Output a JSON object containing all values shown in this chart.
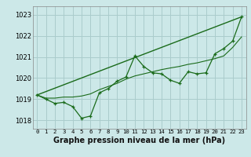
{
  "title": "Graphe pression niveau de la mer (hPa)",
  "bg_color": "#cce8e8",
  "grid_color": "#aacccc",
  "line_color": "#1a6b1a",
  "x_ticks": [
    0,
    1,
    2,
    3,
    4,
    5,
    6,
    7,
    8,
    9,
    10,
    11,
    12,
    13,
    14,
    15,
    16,
    17,
    18,
    19,
    20,
    21,
    22,
    23
  ],
  "y_ticks": [
    1018,
    1019,
    1020,
    1021,
    1022,
    1023
  ],
  "ylim": [
    1017.6,
    1023.4
  ],
  "xlim": [
    -0.5,
    23.5
  ],
  "series1_y": [
    1019.2,
    1019.0,
    1018.8,
    1018.85,
    1018.65,
    1018.1,
    1018.2,
    1019.3,
    1019.5,
    1019.85,
    1020.05,
    1021.05,
    1020.55,
    1020.25,
    1020.2,
    1019.9,
    1019.75,
    1020.3,
    1020.2,
    1020.25,
    1021.15,
    1021.4,
    1021.75,
    1022.9
  ],
  "series2_y": [
    1019.2,
    1019.05,
    1019.05,
    1019.1,
    1019.1,
    1019.15,
    1019.25,
    1019.45,
    1019.6,
    1019.75,
    1019.95,
    1020.1,
    1020.2,
    1020.3,
    1020.4,
    1020.48,
    1020.55,
    1020.65,
    1020.72,
    1020.82,
    1020.92,
    1021.05,
    1021.45,
    1021.95
  ],
  "series3_y": [
    1019.2,
    1022.9
  ],
  "series3_x": [
    0,
    23
  ],
  "tick_fontsize": 6,
  "label_fontsize": 7
}
